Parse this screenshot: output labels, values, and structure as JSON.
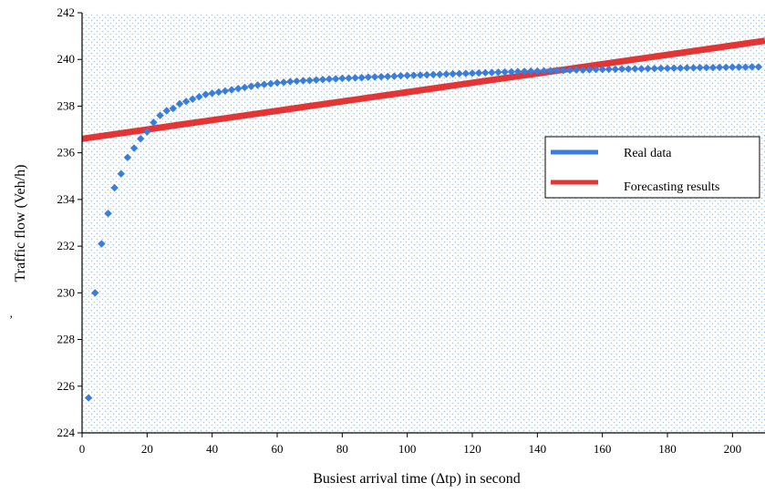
{
  "chart_data": {
    "type": "scatter",
    "title": "",
    "xlabel": "Busiest arrival time (Δtp) in second",
    "ylabel": "Traffic flow (Veh/h)",
    "xlim": [
      0,
      210
    ],
    "ylim": [
      224,
      242
    ],
    "x_ticks": [
      "0",
      "20",
      "40",
      "60",
      "80",
      "100",
      "120",
      "140",
      "160",
      "180",
      "200"
    ],
    "y_ticks": [
      "224",
      "226",
      "228",
      "230",
      "232",
      "234",
      "236",
      "238",
      "240",
      "242"
    ],
    "grid": "dotted background",
    "legend_position": "right",
    "stray_mark": "ʼ",
    "series": [
      {
        "name": "Real data",
        "color": "#3a7ddb",
        "marker": "diamond",
        "x": [
          2,
          4,
          6,
          8,
          10,
          12,
          14,
          16,
          18,
          20,
          22,
          24,
          26,
          28,
          30,
          32,
          34,
          36,
          38,
          40,
          42,
          44,
          46,
          48,
          50,
          52,
          54,
          56,
          58,
          60,
          62,
          64,
          66,
          68,
          70,
          72,
          74,
          76,
          78,
          80,
          82,
          84,
          86,
          88,
          90,
          92,
          94,
          96,
          98,
          100,
          102,
          104,
          106,
          108,
          110,
          112,
          114,
          116,
          118,
          120,
          122,
          124,
          126,
          128,
          130,
          132,
          134,
          136,
          138,
          140,
          142,
          144,
          146,
          148,
          150,
          152,
          154,
          156,
          158,
          160,
          162,
          164,
          166,
          168,
          170,
          172,
          174,
          176,
          178,
          180,
          182,
          184,
          186,
          188,
          190,
          192,
          194,
          196,
          198,
          200,
          202,
          204,
          206,
          208
        ],
        "y": [
          225.5,
          230.0,
          232.1,
          233.4,
          234.5,
          235.1,
          235.8,
          236.2,
          236.6,
          236.9,
          237.3,
          237.6,
          237.8,
          237.9,
          238.1,
          238.2,
          238.3,
          238.4,
          238.5,
          238.55,
          238.6,
          238.65,
          238.7,
          238.75,
          238.8,
          238.85,
          238.9,
          238.93,
          238.96,
          239.0,
          239.02,
          239.05,
          239.07,
          239.09,
          239.1,
          239.12,
          239.14,
          239.16,
          239.17,
          239.19,
          239.2,
          239.21,
          239.22,
          239.24,
          239.25,
          239.26,
          239.27,
          239.28,
          239.3,
          239.31,
          239.32,
          239.33,
          239.34,
          239.35,
          239.36,
          239.37,
          239.38,
          239.39,
          239.4,
          239.41,
          239.42,
          239.43,
          239.44,
          239.45,
          239.46,
          239.47,
          239.48,
          239.49,
          239.5,
          239.5,
          239.51,
          239.52,
          239.53,
          239.53,
          239.54,
          239.55,
          239.55,
          239.56,
          239.57,
          239.57,
          239.58,
          239.58,
          239.59,
          239.59,
          239.6,
          239.6,
          239.61,
          239.61,
          239.62,
          239.62,
          239.63,
          239.63,
          239.64,
          239.64,
          239.65,
          239.65,
          239.65,
          239.66,
          239.66,
          239.67,
          239.67,
          239.67,
          239.68,
          239.68
        ]
      },
      {
        "name": "Forecasting results",
        "color": "#e53434",
        "marker": "line",
        "x": [
          0,
          10,
          20,
          30,
          40,
          50,
          60,
          70,
          80,
          90,
          100,
          110,
          120,
          130,
          140,
          150,
          160,
          170,
          180,
          190,
          200,
          210
        ],
        "y": [
          236.6,
          236.8,
          237.0,
          237.2,
          237.4,
          237.6,
          237.8,
          238.0,
          238.2,
          238.4,
          238.6,
          238.8,
          239.0,
          239.2,
          239.4,
          239.6,
          239.8,
          240.0,
          240.2,
          240.4,
          240.6,
          240.8
        ]
      }
    ]
  }
}
